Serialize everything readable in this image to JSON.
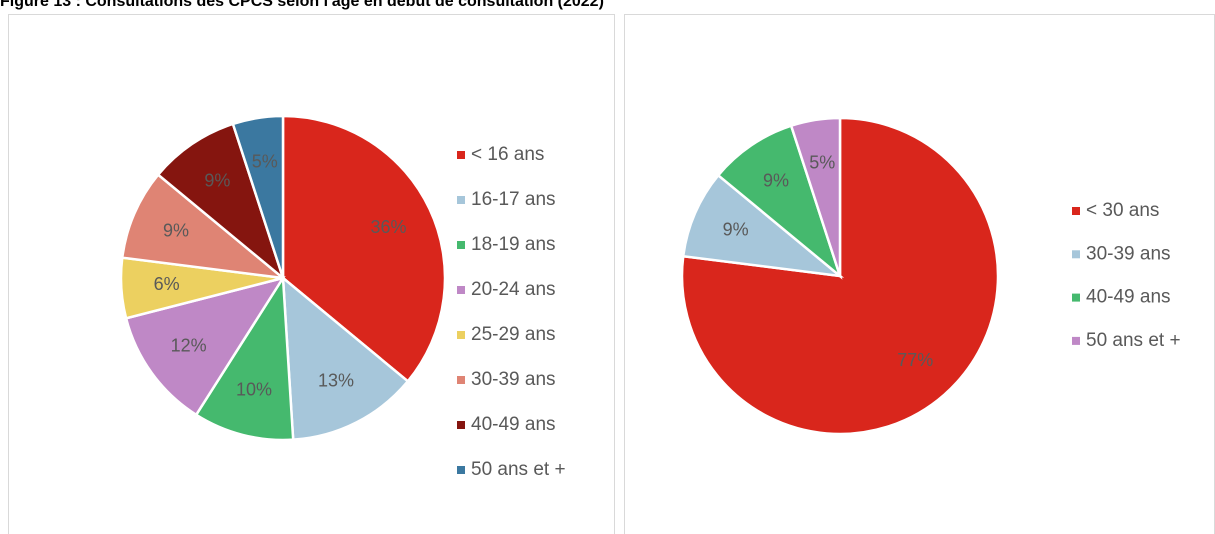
{
  "title": "Figure 13 : Consultations des CPCS selon l'âge en début de consultation (2022)",
  "chart_data": [
    {
      "type": "pie",
      "categories": [
        "< 16 ans",
        "16-17 ans",
        "18-19 ans",
        "20-24 ans",
        "25-29 ans",
        "30-39 ans",
        "40-49 ans",
        "50 ans et +"
      ],
      "values": [
        36,
        13,
        10,
        12,
        6,
        9,
        9,
        5
      ],
      "value_labels": [
        "36%",
        "13%",
        "10%",
        "12%",
        "6%",
        "9%",
        "9%",
        "5%"
      ],
      "colors": [
        "#d9261c",
        "#a6c6da",
        "#45b96e",
        "#bf88c6",
        "#ecd060",
        "#df8474",
        "#85150f",
        "#3b78a0"
      ],
      "legend": "right"
    },
    {
      "type": "pie",
      "categories": [
        "< 30 ans",
        "30-39 ans",
        "40-49 ans",
        "50 ans et +"
      ],
      "values": [
        77,
        9,
        9,
        5
      ],
      "value_labels": [
        "77%",
        "9%",
        "9%",
        "5%"
      ],
      "colors": [
        "#d9261c",
        "#a6c6da",
        "#45b96e",
        "#bf88c6"
      ],
      "legend": "right"
    }
  ]
}
